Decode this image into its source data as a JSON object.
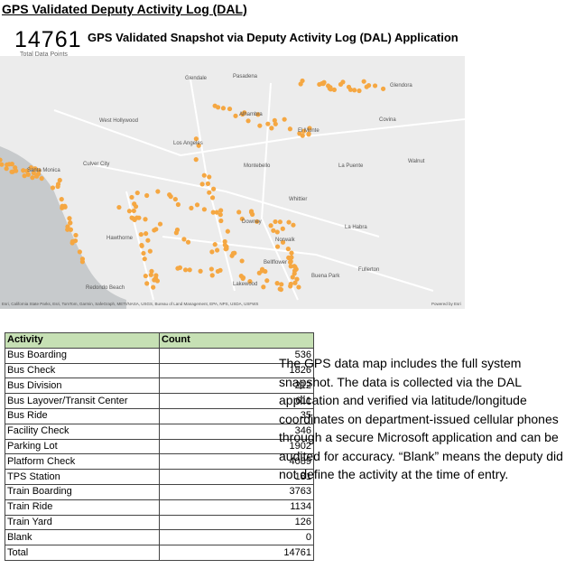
{
  "header": {
    "title": "GPS Validated Deputy Activity Log (DAL)"
  },
  "kpi": {
    "value": "14761",
    "label": "Total Data Points"
  },
  "map": {
    "title": "GPS Validated Snapshot via Deputy Activity Log (DAL) Application",
    "places": [
      "Glendale",
      "Pasadena",
      "Los Angeles",
      "Alhambra",
      "El Monte",
      "Montebello",
      "Norwalk",
      "Lakewood",
      "Bellflower",
      "Downey",
      "Whittier",
      "La Habra",
      "Fullerton",
      "Buena Park",
      "Hawthorne",
      "Culver City",
      "Santa Monica",
      "West Hollywood",
      "Redondo Beach",
      "Covina",
      "Glendora",
      "La Puente",
      "Walnut"
    ],
    "attribution": "Esri, California State Parks, Esri, TomTom, Garmin, SafeGraph, METI/NASA, USGS, Bureau of Land Management, EPA, NPS, USDA, USFWS",
    "powered": "Powered by Esri"
  },
  "table": {
    "columns": [
      "Activity",
      "Count"
    ],
    "rows": [
      [
        "Bus Boarding",
        536
      ],
      [
        "Bus Check",
        1826
      ],
      [
        "Bus Division",
        212
      ],
      [
        "Bus Layover/Transit Center",
        611
      ],
      [
        "Bus Ride",
        35
      ],
      [
        "Facility Check",
        346
      ],
      [
        "Parking Lot",
        1902
      ],
      [
        "Platform Check",
        4089
      ],
      [
        "TPS Station",
        181
      ],
      [
        "Train Boarding",
        3763
      ],
      [
        "Train Ride",
        1134
      ],
      [
        "Train Yard",
        126
      ],
      [
        "Blank",
        0
      ],
      [
        "Total",
        14761
      ]
    ]
  },
  "note": "The GPS data map includes the full system snapshot. The data is collected via the DAL application and verified via latitude/longitude coordinates on department-issued cellular phones through a secure Microsoft application and can be audited for accuracy. “Blank” means the deputy did not define the activity at the time of entry."
}
